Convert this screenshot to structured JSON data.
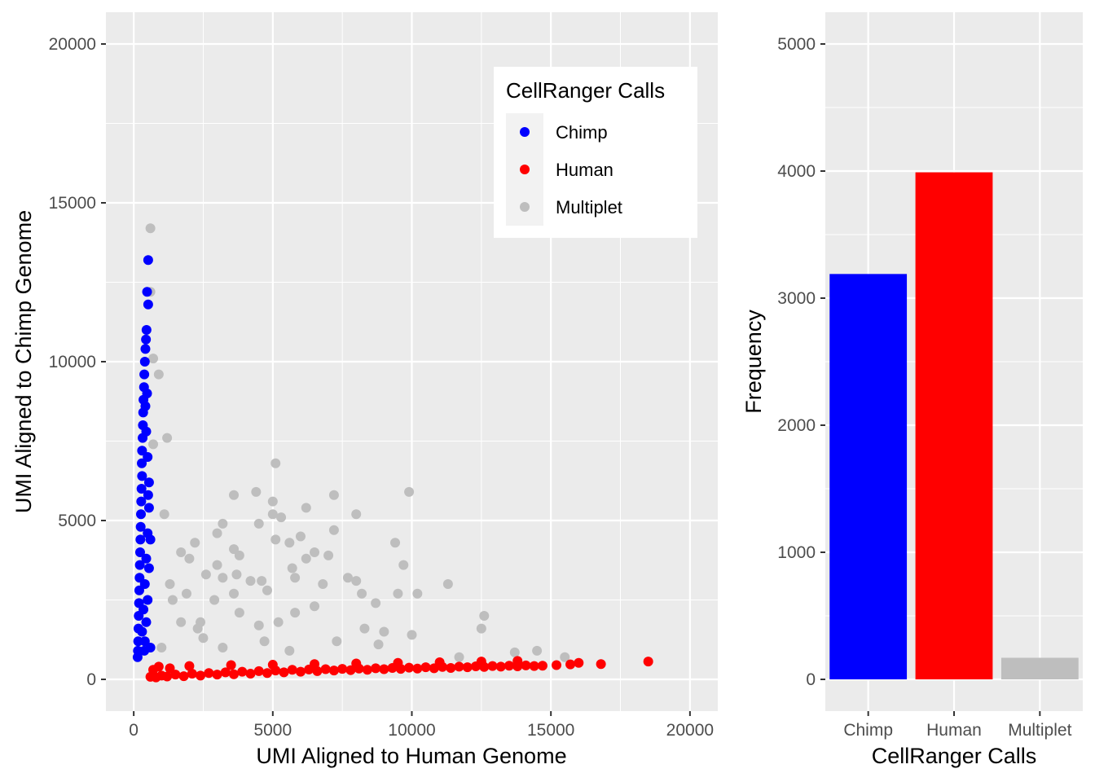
{
  "colors": {
    "panel_bg": "#EBEBEB",
    "grid": "#FFFFFF",
    "tick_text": "#4D4D4D",
    "chimp": "#0000FF",
    "human": "#FF0000",
    "multiplet": "#BEBEBE"
  },
  "chart_data": [
    {
      "type": "scatter",
      "xlabel": "UMI Aligned to Human Genome",
      "ylabel": "UMI Aligned to Chimp Genome",
      "xlim": [
        -1000,
        21000
      ],
      "ylim": [
        -1000,
        21000
      ],
      "x_ticks": [
        0,
        5000,
        10000,
        15000,
        20000
      ],
      "y_ticks": [
        0,
        5000,
        10000,
        15000,
        20000
      ],
      "grid": true,
      "legend": {
        "title": "CellRanger Calls",
        "placement": "top-right",
        "entries": [
          "Chimp",
          "Human",
          "Multiplet"
        ]
      },
      "series": [
        {
          "name": "Chimp",
          "color": "#0000FF",
          "points": [
            [
              520,
              13200
            ],
            [
              480,
              12200
            ],
            [
              520,
              11800
            ],
            [
              460,
              11000
            ],
            [
              440,
              10700
            ],
            [
              420,
              10400
            ],
            [
              400,
              10000
            ],
            [
              380,
              9600
            ],
            [
              370,
              9200
            ],
            [
              350,
              8800
            ],
            [
              340,
              8400
            ],
            [
              330,
              8000
            ],
            [
              320,
              7600
            ],
            [
              300,
              7200
            ],
            [
              290,
              6800
            ],
            [
              300,
              6400
            ],
            [
              280,
              6000
            ],
            [
              270,
              5600
            ],
            [
              260,
              5200
            ],
            [
              250,
              4800
            ],
            [
              240,
              4400
            ],
            [
              230,
              4000
            ],
            [
              220,
              3600
            ],
            [
              210,
              3200
            ],
            [
              200,
              2800
            ],
            [
              190,
              2400
            ],
            [
              180,
              2000
            ],
            [
              170,
              1600
            ],
            [
              160,
              1200
            ],
            [
              150,
              900
            ],
            [
              140,
              700
            ],
            [
              300,
              1500
            ],
            [
              350,
              2200
            ],
            [
              400,
              3000
            ],
            [
              450,
              3800
            ],
            [
              500,
              4600
            ],
            [
              550,
              5400
            ],
            [
              550,
              6200
            ],
            [
              500,
              7000
            ],
            [
              450,
              7800
            ],
            [
              420,
              8600
            ],
            [
              500,
              2500
            ],
            [
              450,
              1800
            ],
            [
              400,
              1200
            ],
            [
              380,
              900
            ],
            [
              550,
              3500
            ],
            [
              600,
              4400
            ],
            [
              520,
              5800
            ],
            [
              480,
              9000
            ],
            [
              600,
              1000
            ]
          ]
        },
        {
          "name": "Human",
          "color": "#FF0000",
          "points": [
            [
              600,
              80
            ],
            [
              800,
              60
            ],
            [
              1000,
              120
            ],
            [
              1200,
              90
            ],
            [
              1500,
              150
            ],
            [
              1800,
              100
            ],
            [
              2100,
              180
            ],
            [
              2400,
              120
            ],
            [
              2700,
              200
            ],
            [
              3000,
              150
            ],
            [
              3300,
              220
            ],
            [
              3600,
              160
            ],
            [
              3900,
              240
            ],
            [
              4200,
              180
            ],
            [
              4500,
              260
            ],
            [
              4800,
              200
            ],
            [
              5100,
              280
            ],
            [
              5400,
              220
            ],
            [
              5700,
              300
            ],
            [
              6000,
              240
            ],
            [
              6300,
              310
            ],
            [
              6600,
              260
            ],
            [
              6900,
              320
            ],
            [
              7200,
              280
            ],
            [
              7500,
              330
            ],
            [
              7800,
              290
            ],
            [
              8100,
              340
            ],
            [
              8400,
              300
            ],
            [
              8700,
              350
            ],
            [
              9000,
              320
            ],
            [
              9300,
              360
            ],
            [
              9600,
              330
            ],
            [
              9900,
              370
            ],
            [
              10200,
              340
            ],
            [
              10500,
              380
            ],
            [
              10800,
              350
            ],
            [
              11100,
              390
            ],
            [
              11400,
              360
            ],
            [
              11700,
              400
            ],
            [
              12000,
              380
            ],
            [
              12300,
              410
            ],
            [
              12600,
              390
            ],
            [
              12900,
              420
            ],
            [
              13200,
              400
            ],
            [
              13500,
              430
            ],
            [
              13800,
              410
            ],
            [
              14100,
              440
            ],
            [
              14400,
              420
            ],
            [
              14700,
              430
            ],
            [
              15200,
              450
            ],
            [
              15700,
              470
            ],
            [
              16000,
              520
            ],
            [
              16800,
              480
            ],
            [
              18500,
              560
            ],
            [
              700,
              300
            ],
            [
              900,
              400
            ],
            [
              1300,
              350
            ],
            [
              2000,
              420
            ],
            [
              3500,
              450
            ],
            [
              5000,
              460
            ],
            [
              6500,
              480
            ],
            [
              8000,
              500
            ],
            [
              9500,
              520
            ],
            [
              11000,
              540
            ],
            [
              12500,
              560
            ],
            [
              13800,
              580
            ]
          ]
        },
        {
          "name": "Multiplet",
          "color": "#BEBEBE",
          "points": [
            [
              600,
              14200
            ],
            [
              600,
              12200
            ],
            [
              700,
              10100
            ],
            [
              900,
              9600
            ],
            [
              1200,
              7600
            ],
            [
              700,
              7400
            ],
            [
              5100,
              6800
            ],
            [
              4400,
              5900
            ],
            [
              3600,
              5800
            ],
            [
              7200,
              5800
            ],
            [
              9900,
              5900
            ],
            [
              5000,
              5600
            ],
            [
              6200,
              5400
            ],
            [
              8000,
              5200
            ],
            [
              5000,
              5200
            ],
            [
              5300,
              5100
            ],
            [
              1100,
              5200
            ],
            [
              3200,
              4900
            ],
            [
              4500,
              4900
            ],
            [
              2200,
              4300
            ],
            [
              3000,
              4600
            ],
            [
              6000,
              4500
            ],
            [
              7200,
              4700
            ],
            [
              9400,
              4300
            ],
            [
              5100,
              4400
            ],
            [
              5600,
              4300
            ],
            [
              1700,
              4000
            ],
            [
              2000,
              3800
            ],
            [
              3600,
              4100
            ],
            [
              3800,
              3900
            ],
            [
              7000,
              3900
            ],
            [
              6500,
              4000
            ],
            [
              6200,
              3800
            ],
            [
              3000,
              3600
            ],
            [
              5700,
              3500
            ],
            [
              9700,
              3600
            ],
            [
              2600,
              3300
            ],
            [
              3700,
              3300
            ],
            [
              1300,
              3000
            ],
            [
              4600,
              3100
            ],
            [
              5800,
              3200
            ],
            [
              8000,
              3100
            ],
            [
              3200,
              3200
            ],
            [
              7700,
              3200
            ],
            [
              4200,
              3100
            ],
            [
              6800,
              3000
            ],
            [
              8200,
              2700
            ],
            [
              11300,
              3000
            ],
            [
              1900,
              2700
            ],
            [
              4800,
              2800
            ],
            [
              3600,
              2700
            ],
            [
              1400,
              2500
            ],
            [
              9500,
              2700
            ],
            [
              10200,
              2700
            ],
            [
              2900,
              2500
            ],
            [
              6500,
              2300
            ],
            [
              8700,
              2400
            ],
            [
              12600,
              2000
            ],
            [
              5800,
              2100
            ],
            [
              3800,
              2100
            ],
            [
              2400,
              1800
            ],
            [
              2300,
              1600
            ],
            [
              4500,
              1700
            ],
            [
              1700,
              1800
            ],
            [
              5200,
              1800
            ],
            [
              8300,
              1600
            ],
            [
              12500,
              1600
            ],
            [
              9000,
              1500
            ],
            [
              10000,
              1400
            ],
            [
              4700,
              1200
            ],
            [
              2500,
              1300
            ],
            [
              7300,
              1200
            ],
            [
              14500,
              900
            ],
            [
              13700,
              850
            ],
            [
              15500,
              700
            ],
            [
              8800,
              1100
            ],
            [
              1000,
              1000
            ],
            [
              3200,
              1000
            ],
            [
              5600,
              900
            ],
            [
              11700,
              700
            ]
          ]
        }
      ]
    },
    {
      "type": "bar",
      "xlabel": "CellRanger Calls",
      "ylabel": "Frequency",
      "categories": [
        "Chimp",
        "Human",
        "Multiplet"
      ],
      "values": [
        3190,
        3990,
        170
      ],
      "colors": [
        "#0000FF",
        "#FF0000",
        "#BEBEBE"
      ],
      "ylim": [
        -250,
        5250
      ],
      "y_ticks": [
        0,
        1000,
        2000,
        3000,
        4000,
        5000
      ],
      "grid": true
    }
  ]
}
